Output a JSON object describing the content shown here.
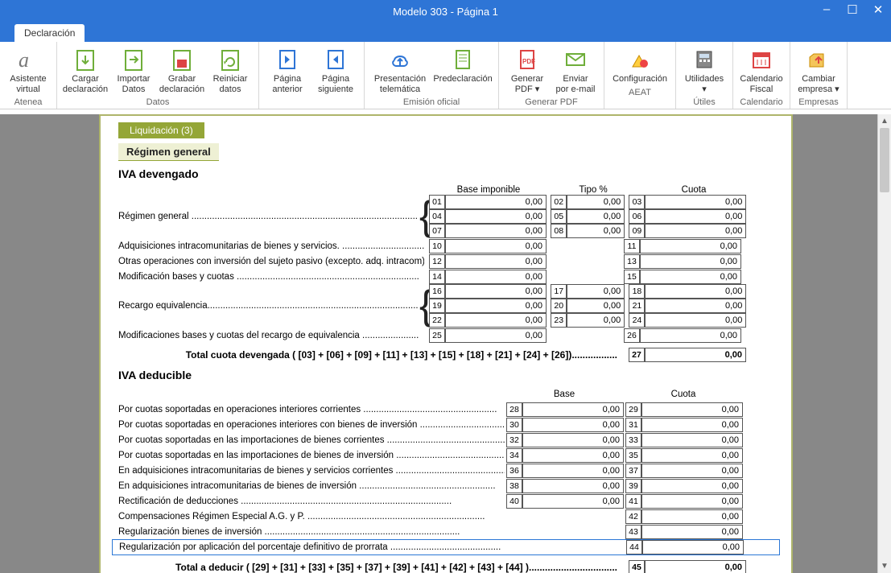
{
  "window": {
    "title": "Modelo 303 - Página 1"
  },
  "tab": {
    "label": "Declaración"
  },
  "ribbon": {
    "groups": [
      {
        "label": "Atenea",
        "buttons": [
          {
            "key": "asistente",
            "line1": "Asistente",
            "line2": "virtual"
          }
        ]
      },
      {
        "label": "Datos",
        "buttons": [
          {
            "key": "cargar",
            "line1": "Cargar",
            "line2": "declaración"
          },
          {
            "key": "importar",
            "line1": "Importar",
            "line2": "Datos"
          },
          {
            "key": "grabar",
            "line1": "Grabar",
            "line2": "declaración"
          },
          {
            "key": "reiniciar",
            "line1": "Reiniciar",
            "line2": "datos"
          }
        ]
      },
      {
        "label": "",
        "buttons": [
          {
            "key": "pag_ant",
            "line1": "Página",
            "line2": "anterior"
          },
          {
            "key": "pag_sig",
            "line1": "Página",
            "line2": "siguiente"
          }
        ]
      },
      {
        "label": "Emisión oficial",
        "buttons": [
          {
            "key": "telematica",
            "line1": "Presentación",
            "line2": "telemática"
          },
          {
            "key": "predecl",
            "line1": "Predeclaración",
            "line2": ""
          }
        ]
      },
      {
        "label": "Generar PDF",
        "buttons": [
          {
            "key": "genpdf",
            "line1": "Generar",
            "line2": "PDF ▾"
          },
          {
            "key": "enviar",
            "line1": "Enviar",
            "line2": "por e-mail"
          }
        ]
      },
      {
        "label": "AEAT",
        "buttons": [
          {
            "key": "config",
            "line1": "Configuración",
            "line2": ""
          }
        ]
      },
      {
        "label": "Útiles",
        "buttons": [
          {
            "key": "util",
            "line1": "Utilidades",
            "line2": "▾"
          }
        ]
      },
      {
        "label": "Calendario",
        "buttons": [
          {
            "key": "cal",
            "line1": "Calendario",
            "line2": "Fiscal"
          }
        ]
      },
      {
        "label": "Empresas",
        "buttons": [
          {
            "key": "emp",
            "line1": "Cambiar",
            "line2": "empresa ▾"
          }
        ]
      }
    ]
  },
  "form": {
    "liquidacion_tab": "Liquidación (3)",
    "regimen_sub": "Régimen general",
    "iva_dev_title": "IVA devengado",
    "iva_ded_title": "IVA deducible",
    "hdr_base": "Base imponible",
    "hdr_tipo": "Tipo %",
    "hdr_cuota": "Cuota",
    "hdr_base2": "Base",
    "hdr_cuota2": "Cuota",
    "zero": "0,00",
    "dev": {
      "rgen": "Régimen general",
      "adq": "Adquisiciones intracomunitarias de bienes y servicios.",
      "inv": "Otras operaciones con inversión del sujeto pasivo (excepto. adq. intracom)",
      "mod": "Modificación bases y cuotas",
      "rec": "Recargo equivalencia",
      "mod2": "Modificaciones bases y cuotas del recargo de equivalencia",
      "total": "Total cuota devengada ( [03] + [06] + [09] + [11] + [13] + [15] + [18] + [21] + [24] + [26])................."
    },
    "ded": {
      "l28": "Por cuotas soportadas en operaciones interiores corrientes",
      "l30": "Por cuotas soportadas en operaciones interiores con bienes de inversión",
      "l32": "Por cuotas soportadas en las importaciones de bienes corrientes",
      "l34": "Por cuotas soportadas en las importaciones de bienes de inversión",
      "l36": "En adquisiciones intracomunitarias de bienes y servicios corrientes",
      "l38": "En adquisiciones intracomunitarias de bienes de inversión",
      "l40": "Rectificación de deducciones",
      "l42": "Compensaciones Régimen Especial A.G. y P.",
      "l43": "Regularización bienes de inversión",
      "l44": "Regularización por aplicación del porcentaje definitivo de prorrata",
      "total": "Total a deducir ( [29] + [31] + [33] + [35] + [37] + [39] + [41] + [42] + [43] + [44] )................................."
    },
    "cells": {
      "c01": "01",
      "c02": "02",
      "c03": "03",
      "c04": "04",
      "c05": "05",
      "c06": "06",
      "c07": "07",
      "c08": "08",
      "c09": "09",
      "c10": "10",
      "c11": "11",
      "c12": "12",
      "c13": "13",
      "c14": "14",
      "c15": "15",
      "c16": "16",
      "c17": "17",
      "c18": "18",
      "c19": "19",
      "c20": "20",
      "c21": "21",
      "c22": "22",
      "c23": "23",
      "c24": "24",
      "c25": "25",
      "c26": "26",
      "c27": "27",
      "c28": "28",
      "c29": "29",
      "c30": "30",
      "c31": "31",
      "c32": "32",
      "c33": "33",
      "c34": "34",
      "c35": "35",
      "c36": "36",
      "c37": "37",
      "c38": "38",
      "c39": "39",
      "c40": "40",
      "c41": "41",
      "c42": "42",
      "c43": "43",
      "c44": "44",
      "c45": "45"
    }
  },
  "style": {
    "titlebar_bg": "#2e75d6",
    "accent_green": "#94a637",
    "border_green": "#aeb56b",
    "highlight_blue": "#2b77d6"
  }
}
